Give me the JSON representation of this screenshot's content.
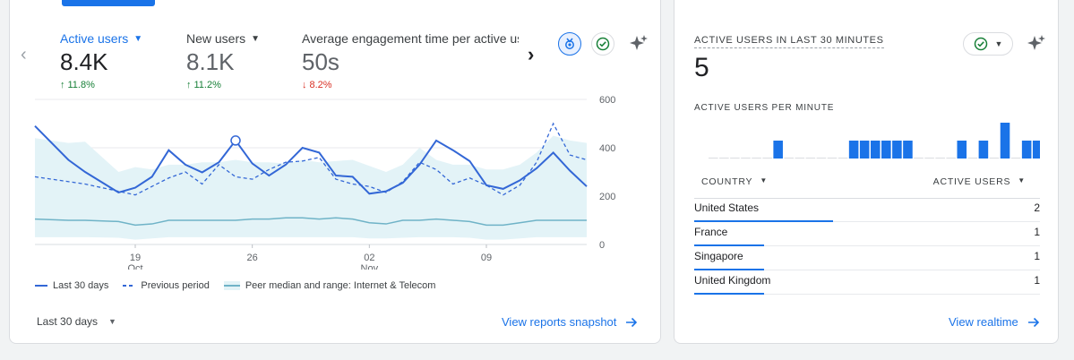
{
  "snapshot": {
    "metrics": [
      {
        "label": "Active users",
        "value": "8.4K",
        "change": "11.8%",
        "direction": "up",
        "arrow": "↑"
      },
      {
        "label": "New users",
        "value": "8.1K",
        "change": "11.2%",
        "direction": "up",
        "arrow": "↑"
      },
      {
        "label": "Average engagement time per active user",
        "value": "50s",
        "change": "8.2%",
        "direction": "down",
        "arrow": "↓"
      }
    ],
    "icons": {
      "prev": "chevron-left-icon",
      "next": "chevron-right-icon",
      "compare": "compare-badge-icon",
      "check": "check-circle-icon",
      "insights": "sparkle-icon"
    },
    "chart_data": {
      "type": "line",
      "x_ticks": [
        {
          "day": 19,
          "label": "19",
          "sub": "Oct"
        },
        {
          "day": 26,
          "label": "26",
          "sub": ""
        },
        {
          "day": 33,
          "label": "02",
          "sub": "Nov"
        },
        {
          "day": 40,
          "label": "09",
          "sub": ""
        }
      ],
      "ylim": [
        0,
        600
      ],
      "y_ticks": [
        "600",
        "400",
        "200",
        "0"
      ],
      "y_tick_values": [
        600,
        400,
        200,
        0
      ],
      "x_days": [
        13,
        14,
        15,
        16,
        17,
        18,
        19,
        20,
        21,
        22,
        23,
        24,
        25,
        26,
        27,
        28,
        29,
        30,
        31,
        32,
        33,
        34,
        35,
        36,
        37,
        38,
        39,
        40,
        41,
        42,
        43,
        44,
        45,
        46
      ],
      "series": [
        {
          "name": "Last 30 days",
          "style": "solid",
          "color": "#3367d6",
          "x": [
            13,
            15,
            16,
            18,
            19,
            20,
            21,
            22,
            23,
            24,
            25,
            26,
            27,
            28,
            29,
            30,
            31,
            32,
            33,
            34,
            35,
            36,
            37,
            38,
            39,
            40,
            41,
            42,
            43,
            44,
            45,
            46
          ],
          "values": [
            490,
            350,
            300,
            215,
            235,
            280,
            390,
            330,
            298,
            340,
            430,
            335,
            285,
            330,
            400,
            380,
            285,
            280,
            210,
            220,
            255,
            330,
            430,
            390,
            345,
            245,
            230,
            265,
            315,
            380,
            305,
            240
          ]
        },
        {
          "name": "Previous period",
          "style": "dashed",
          "color": "#3367d6",
          "x": [
            13,
            16,
            18,
            19,
            20,
            21,
            22,
            23,
            24,
            25,
            26,
            27,
            28,
            29,
            30,
            31,
            32,
            33,
            34,
            35,
            36,
            37,
            38,
            39,
            40,
            41,
            42,
            43,
            44,
            45,
            46
          ],
          "values": [
            280,
            250,
            220,
            205,
            240,
            275,
            300,
            250,
            330,
            280,
            270,
            310,
            340,
            345,
            360,
            270,
            250,
            240,
            215,
            260,
            340,
            310,
            250,
            275,
            245,
            205,
            245,
            340,
            500,
            370,
            350
          ]
        },
        {
          "name": "Peer median and range: Internet & Telecom",
          "style": "band",
          "color": "#6fb3c7",
          "x": [
            13,
            15,
            16,
            18,
            19,
            20,
            21,
            22,
            23,
            24,
            25,
            26,
            27,
            28,
            29,
            30,
            31,
            32,
            33,
            34,
            35,
            36,
            37,
            38,
            39,
            40,
            41,
            42,
            43,
            44,
            45,
            46
          ],
          "median": [
            105,
            100,
            100,
            95,
            80,
            85,
            100,
            100,
            100,
            100,
            100,
            105,
            105,
            110,
            110,
            105,
            110,
            105,
            90,
            85,
            100,
            100,
            105,
            100,
            95,
            80,
            80,
            90,
            100,
            100,
            100,
            100
          ],
          "high": [
            440,
            420,
            425,
            300,
            320,
            310,
            330,
            330,
            340,
            340,
            350,
            340,
            340,
            335,
            350,
            340,
            345,
            350,
            325,
            300,
            330,
            400,
            350,
            330,
            330,
            310,
            310,
            330,
            380,
            450,
            430,
            420
          ],
          "low": [
            30,
            30,
            30,
            28,
            20,
            25,
            30,
            30,
            30,
            30,
            30,
            30,
            30,
            30,
            30,
            30,
            30,
            30,
            25,
            25,
            28,
            30,
            30,
            30,
            28,
            20,
            20,
            25,
            30,
            30,
            30,
            30
          ]
        }
      ],
      "highlight": {
        "series": "Last 30 days",
        "x": 25,
        "value": 430
      }
    },
    "date_range": "Last 30 days",
    "view_link": "View reports snapshot"
  },
  "realtime": {
    "title": "ACTIVE USERS IN LAST 30 MINUTES",
    "value": "5",
    "subtitle": "ACTIVE USERS PER MINUTE",
    "per_minute": [
      0,
      0,
      0,
      0,
      0,
      0,
      1,
      0,
      0,
      0,
      0,
      0,
      0,
      1,
      1,
      1,
      1,
      1,
      1,
      0,
      0,
      0,
      0,
      1,
      0,
      1,
      0,
      2,
      0,
      1,
      1
    ],
    "col_country": "COUNTRY",
    "col_active": "ACTIVE USERS",
    "rows": [
      {
        "country": "United States",
        "users": "2",
        "share": 1.0
      },
      {
        "country": "France",
        "users": "1",
        "share": 0.5
      },
      {
        "country": "Singapore",
        "users": "1",
        "share": 0.5
      },
      {
        "country": "United Kingdom",
        "users": "1",
        "share": 0.5
      }
    ],
    "view_link": "View realtime"
  },
  "colors": {
    "accent": "#1a73e8",
    "up": "#188038",
    "down": "#d93025",
    "band": "#e3f3f7",
    "peer": "#6fb3c7"
  }
}
